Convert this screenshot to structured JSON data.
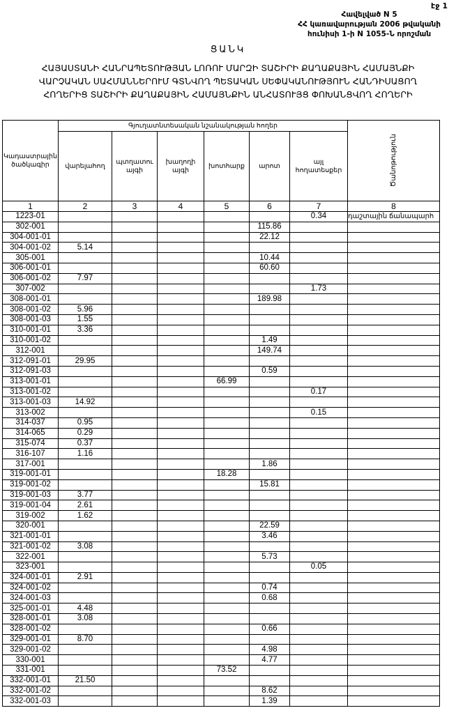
{
  "page_label": "էջ 1",
  "annex": {
    "line1": "Հավելված N 5",
    "line2": "ՀՀ կառավարության 2006 թվականի",
    "line3": "հունիսի 1-ի N 1055-Ն որոշման"
  },
  "title": "ՑԱՆԿ",
  "subtitle": "ՀԱՅԱՍՏԱՆԻ ՀԱՆՐԱՊԵՏՈՒԹՅԱՆ ԼՈՌՈՒ ՄԱՐԶԻ ՏԱՇԻՐԻ ՔԱՂԱՔԱՅԻՆ ՀԱՄԱՅՆՔԻ ՎԱՐՉԱԿԱՆ ՍԱՀՄԱՆՆԵՐՈՒՄ ԳՏՆՎՈՂ ՊԵՏԱԿԱՆ ՍԵՓԱԿԱՆՈՒԹՅՈՒՆ ՀԱՆԴԻՍԱՑՈՂ ՀՈՂԵՐԻՑ ՏԱՇԻՐԻ ՔԱՂԱՔԱՅԻՆ ՀԱՄԱՅՆՔԻՆ ԱՆՀԱՏՈՒՅՑ ՓՈԽԱՆՑՎՈՂ ՀՈՂԵՐԻ",
  "table": {
    "group_header": "Գյուղատնտեսական նշանակության հողեր",
    "columns": [
      "Կադաստրային ծածկագիր",
      "վարելահող",
      "պտղատու այգի",
      "խաղողի այգի",
      "խոտհարք",
      "արոտ",
      "այլ հողատեսքեր",
      "Ծանոթություն"
    ],
    "column_numbers": [
      "1",
      "2",
      "3",
      "4",
      "5",
      "6",
      "7",
      "8"
    ],
    "rows": [
      [
        "1223-01",
        "",
        "",
        "",
        "",
        "",
        "0.34",
        "դաշտային ճանապարհ"
      ],
      [
        "302-001",
        "",
        "",
        "",
        "",
        "115.86",
        "",
        ""
      ],
      [
        "304-001-01",
        "",
        "",
        "",
        "",
        "22.12",
        "",
        ""
      ],
      [
        "304-001-02",
        "5.14",
        "",
        "",
        "",
        "",
        "",
        ""
      ],
      [
        "305-001",
        "",
        "",
        "",
        "",
        "10.44",
        "",
        ""
      ],
      [
        "306-001-01",
        "",
        "",
        "",
        "",
        "60.60",
        "",
        ""
      ],
      [
        "306-001-02",
        "7.97",
        "",
        "",
        "",
        "",
        "",
        ""
      ],
      [
        "307-002",
        "",
        "",
        "",
        "",
        "",
        "1.73",
        ""
      ],
      [
        "308-001-01",
        "",
        "",
        "",
        "",
        "189.98",
        "",
        ""
      ],
      [
        "308-001-02",
        "5.96",
        "",
        "",
        "",
        "",
        "",
        ""
      ],
      [
        "308-001-03",
        "1.55",
        "",
        "",
        "",
        "",
        "",
        ""
      ],
      [
        "310-001-01",
        "3.36",
        "",
        "",
        "",
        "",
        "",
        ""
      ],
      [
        "310-001-02",
        "",
        "",
        "",
        "",
        "1.49",
        "",
        ""
      ],
      [
        "312-001",
        "",
        "",
        "",
        "",
        "149.74",
        "",
        ""
      ],
      [
        "312-091-01",
        "29.95",
        "",
        "",
        "",
        "",
        "",
        ""
      ],
      [
        "312-091-03",
        "",
        "",
        "",
        "",
        "0.59",
        "",
        ""
      ],
      [
        "313-001-01",
        "",
        "",
        "",
        "66.99",
        "",
        "",
        ""
      ],
      [
        "313-001-02",
        "",
        "",
        "",
        "",
        "",
        "0.17",
        ""
      ],
      [
        "313-001-03",
        "14.92",
        "",
        "",
        "",
        "",
        "",
        ""
      ],
      [
        "313-002",
        "",
        "",
        "",
        "",
        "",
        "0.15",
        ""
      ],
      [
        "314-037",
        "0.95",
        "",
        "",
        "",
        "",
        "",
        ""
      ],
      [
        "314-065",
        "0.29",
        "",
        "",
        "",
        "",
        "",
        ""
      ],
      [
        "315-074",
        "0.37",
        "",
        "",
        "",
        "",
        "",
        ""
      ],
      [
        "316-107",
        "1.16",
        "",
        "",
        "",
        "",
        "",
        ""
      ],
      [
        "317-001",
        "",
        "",
        "",
        "",
        "1.86",
        "",
        ""
      ],
      [
        "319-001-01",
        "",
        "",
        "",
        "18.28",
        "",
        "",
        ""
      ],
      [
        "319-001-02",
        "",
        "",
        "",
        "",
        "15.81",
        "",
        ""
      ],
      [
        "319-001-03",
        "3.77",
        "",
        "",
        "",
        "",
        "",
        ""
      ],
      [
        "319-001-04",
        "2.61",
        "",
        "",
        "",
        "",
        "",
        ""
      ],
      [
        "319-002",
        "1.62",
        "",
        "",
        "",
        "",
        "",
        ""
      ],
      [
        "320-001",
        "",
        "",
        "",
        "",
        "22.59",
        "",
        ""
      ],
      [
        "321-001-01",
        "",
        "",
        "",
        "",
        "3.46",
        "",
        ""
      ],
      [
        "321-001-02",
        "3.08",
        "",
        "",
        "",
        "",
        "",
        ""
      ],
      [
        "322-001",
        "",
        "",
        "",
        "",
        "5.73",
        "",
        ""
      ],
      [
        "323-001",
        "",
        "",
        "",
        "",
        "",
        "0.05",
        ""
      ],
      [
        "324-001-01",
        "2.91",
        "",
        "",
        "",
        "",
        "",
        ""
      ],
      [
        "324-001-02",
        "",
        "",
        "",
        "",
        "0.74",
        "",
        ""
      ],
      [
        "324-001-03",
        "",
        "",
        "",
        "",
        "0.68",
        "",
        ""
      ],
      [
        "325-001-01",
        "4.48",
        "",
        "",
        "",
        "",
        "",
        ""
      ],
      [
        "328-001-01",
        "3.08",
        "",
        "",
        "",
        "",
        "",
        ""
      ],
      [
        "328-001-02",
        "",
        "",
        "",
        "",
        "0.66",
        "",
        ""
      ],
      [
        "329-001-01",
        "8.70",
        "",
        "",
        "",
        "",
        "",
        ""
      ],
      [
        "329-001-02",
        "",
        "",
        "",
        "",
        "4.98",
        "",
        ""
      ],
      [
        "330-001",
        "",
        "",
        "",
        "",
        "4.77",
        "",
        ""
      ],
      [
        "331-001",
        "",
        "",
        "",
        "73.52",
        "",
        "",
        ""
      ],
      [
        "332-001-01",
        "21.50",
        "",
        "",
        "",
        "",
        "",
        ""
      ],
      [
        "332-001-02",
        "",
        "",
        "",
        "",
        "8.62",
        "",
        ""
      ],
      [
        "332-001-03",
        "",
        "",
        "",
        "",
        "1.39",
        "",
        ""
      ]
    ]
  }
}
